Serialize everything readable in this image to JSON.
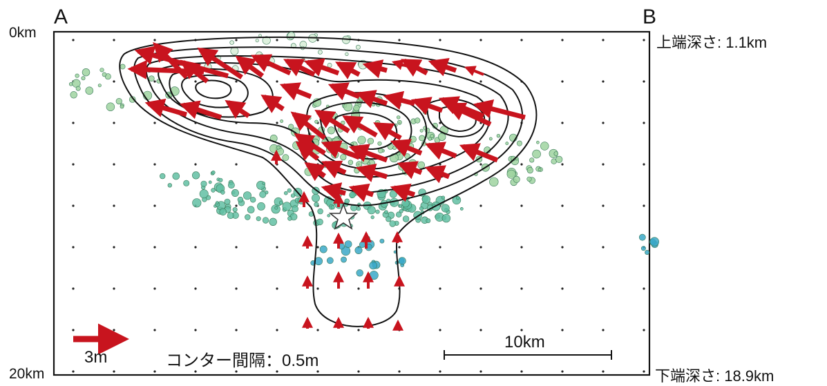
{
  "labels": {
    "corner_a": "A",
    "corner_b": "B",
    "top_depth_axis": "0km",
    "bottom_depth_axis": "20km",
    "upper_edge_depth": "上端深さ: 1.1km",
    "lower_edge_depth": "下端深さ: 18.9km",
    "arrow_scale": "3m",
    "contour_interval": "コンター間隔：0.5m",
    "distance_scale": "10km"
  },
  "colors": {
    "slip_arrow": "#c8141e",
    "contour": "#111111",
    "quake_shallow": "#9fd3a0",
    "quake_mid": "#62c0a3",
    "quake_deep": "#3aa8c8",
    "hypocenter_star": "#ffffff"
  },
  "legend": {
    "arrow_scale_value_m": 3,
    "contour_interval_m": 0.5,
    "distance_scale_km": 10
  }
}
